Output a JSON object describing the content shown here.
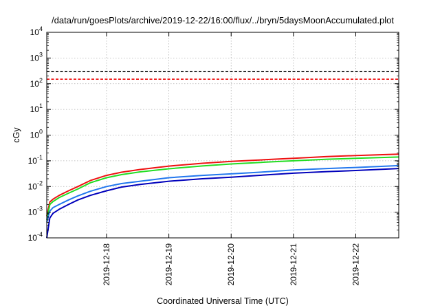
{
  "chart_data": {
    "type": "line",
    "title": "/data/run/goesPlots/archive/2019-12-22/16:00/flux/../bryn/5daysMoonAccumulated.plot",
    "xlabel": "Coordinated Universal Time (UTC)",
    "ylabel": "cGy",
    "y_scale": "log",
    "ylim": [
      0.0001,
      10000
    ],
    "xlim": [
      0,
      5.65
    ],
    "grid": true,
    "legend": "none",
    "x_tick_labels": [
      {
        "x": 0.96,
        "label": "2019-12-18"
      },
      {
        "x": 1.96,
        "label": "2019-12-19"
      },
      {
        "x": 2.96,
        "label": "2019-12-20"
      },
      {
        "x": 3.96,
        "label": "2019-12-21"
      },
      {
        "x": 4.96,
        "label": "2019-12-22"
      }
    ],
    "y_ticks": [
      {
        "value": 0.0001,
        "base": "10",
        "exp": "-4"
      },
      {
        "value": 0.001,
        "base": "10",
        "exp": "-3"
      },
      {
        "value": 0.01,
        "base": "10",
        "exp": "-2"
      },
      {
        "value": 0.1,
        "base": "10",
        "exp": "-1"
      },
      {
        "value": 1,
        "base": "10",
        "exp": "0"
      },
      {
        "value": 10,
        "base": "10",
        "exp": "1"
      },
      {
        "value": 100,
        "base": "10",
        "exp": "2"
      },
      {
        "value": 1000,
        "base": "10",
        "exp": "3"
      },
      {
        "value": 10000,
        "base": "10",
        "exp": "4"
      }
    ],
    "reference_lines": [
      {
        "value": 300,
        "color": "#000000",
        "dash": true
      },
      {
        "value": 150,
        "color": "#ee0000",
        "dash": true
      }
    ],
    "series": [
      {
        "color": "#ee1111",
        "x": [
          0.0,
          0.05,
          0.1,
          0.2,
          0.35,
          0.5,
          0.7,
          0.96,
          1.2,
          1.5,
          1.96,
          2.5,
          2.96,
          3.5,
          3.96,
          4.5,
          4.96,
          5.65
        ],
        "y": [
          0.0007,
          0.0025,
          0.0032,
          0.0045,
          0.0068,
          0.01,
          0.017,
          0.027,
          0.036,
          0.046,
          0.062,
          0.08,
          0.095,
          0.11,
          0.125,
          0.145,
          0.16,
          0.18
        ]
      },
      {
        "color": "#22dd22",
        "x": [
          0.0,
          0.05,
          0.1,
          0.2,
          0.35,
          0.5,
          0.7,
          0.96,
          1.2,
          1.5,
          1.96,
          2.5,
          2.96,
          3.5,
          3.96,
          4.5,
          4.96,
          5.65
        ],
        "y": [
          0.0005,
          0.002,
          0.0026,
          0.0037,
          0.0055,
          0.008,
          0.014,
          0.022,
          0.029,
          0.037,
          0.049,
          0.063,
          0.075,
          0.088,
          0.1,
          0.115,
          0.125,
          0.14
        ]
      },
      {
        "color": "#2277ee",
        "x": [
          0.0,
          0.05,
          0.1,
          0.2,
          0.35,
          0.5,
          0.7,
          0.96,
          1.2,
          1.5,
          1.96,
          2.5,
          2.96,
          3.5,
          3.96,
          4.5,
          4.96,
          5.65
        ],
        "y": [
          0.0004,
          0.0011,
          0.0015,
          0.002,
          0.003,
          0.0043,
          0.0065,
          0.01,
          0.013,
          0.016,
          0.022,
          0.027,
          0.031,
          0.037,
          0.044,
          0.05,
          0.055,
          0.065
        ]
      },
      {
        "color": "#0000bb",
        "x": [
          0.0,
          0.05,
          0.1,
          0.2,
          0.35,
          0.5,
          0.7,
          0.96,
          1.2,
          1.5,
          1.96,
          2.5,
          2.96,
          3.5,
          3.96,
          4.5,
          4.96,
          5.65
        ],
        "y": [
          0.0001,
          0.0006,
          0.0009,
          0.0013,
          0.002,
          0.003,
          0.0045,
          0.0068,
          0.0095,
          0.012,
          0.016,
          0.02,
          0.023,
          0.028,
          0.033,
          0.038,
          0.042,
          0.05
        ]
      }
    ]
  }
}
